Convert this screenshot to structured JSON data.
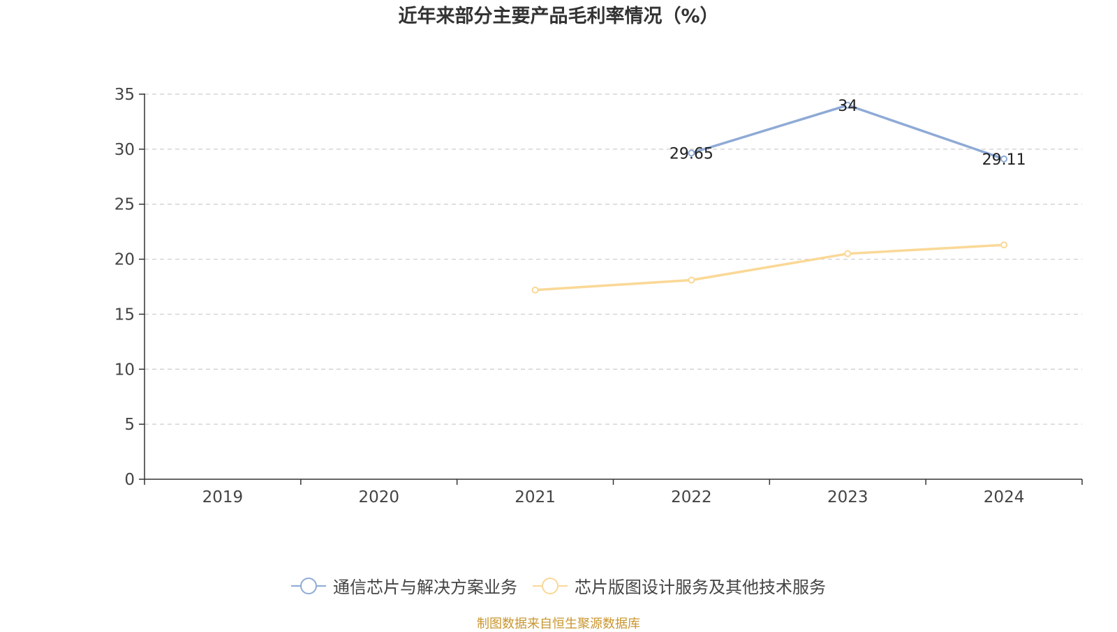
{
  "chart_data": {
    "type": "line",
    "title": "近年来部分主要产品毛利率情况（%）",
    "categories": [
      "2019",
      "2020",
      "2021",
      "2022",
      "2023",
      "2024"
    ],
    "ylim": [
      0,
      35
    ],
    "yticks": [
      0,
      5,
      10,
      15,
      20,
      25,
      30,
      35
    ],
    "grid": true,
    "legend_position": "bottom",
    "series": [
      {
        "name": "通信芯片与解决方案业务",
        "color": "#8eaad6",
        "values": [
          null,
          null,
          null,
          29.65,
          34,
          29.11
        ],
        "labels": [
          "",
          "",
          "",
          "29.65",
          "34",
          "29.11"
        ]
      },
      {
        "name": "芯片版图设计服务及其他技术服务",
        "color": "#fad896",
        "values": [
          null,
          null,
          17.2,
          18.1,
          20.5,
          21.3
        ],
        "labels": [
          "",
          "",
          "",
          "",
          "",
          ""
        ]
      }
    ]
  },
  "source_note": "制图数据来自恒生聚源数据库"
}
